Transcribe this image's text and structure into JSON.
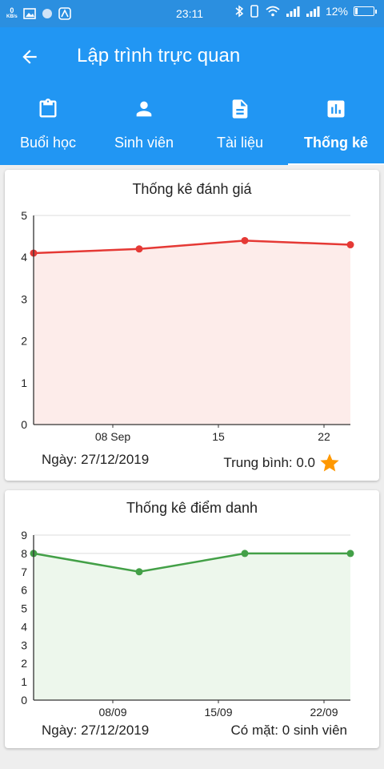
{
  "status_bar": {
    "net_speed": "0",
    "net_unit": "KB/s",
    "time": "23:11",
    "battery": "12%",
    "battery_level": 0.12
  },
  "app_bar": {
    "title": "Lập trình trực quan"
  },
  "tabs": [
    {
      "label": "Buổi học",
      "icon": "clipboard-icon"
    },
    {
      "label": "Sinh viên",
      "icon": "person-icon"
    },
    {
      "label": "Tài liệu",
      "icon": "document-icon"
    },
    {
      "label": "Thống kê",
      "icon": "chart-icon",
      "selected": true
    }
  ],
  "rating_card": {
    "title": "Thống kê đánh giá",
    "date": "Ngày: 27/12/2019",
    "average": "Trung bình: 0.0",
    "star_icon": "star-icon"
  },
  "attendance_card": {
    "title": "Thống kê điểm danh",
    "date": "Ngày: 27/12/2019",
    "present": "Có mặt: 0 sinh viên"
  },
  "chart_data": [
    {
      "type": "area",
      "title": "Thống kê đánh giá",
      "x_ticks": [
        "08 Sep",
        "15",
        "22"
      ],
      "x_tick_pos": [
        1.5,
        3.5,
        5.5
      ],
      "x": [
        0,
        2,
        4,
        6
      ],
      "xlim": [
        0,
        6
      ],
      "values": [
        4.1,
        4.2,
        4.4,
        4.3
      ],
      "ylim": [
        0,
        5
      ],
      "y_ticks": [
        0,
        1,
        2,
        3,
        4,
        5
      ],
      "color": "#e53935",
      "fill": "#fdecea",
      "grid": true
    },
    {
      "type": "area",
      "title": "Thống kê điểm danh",
      "x_ticks": [
        "08/09",
        "15/09",
        "22/09"
      ],
      "x_tick_pos": [
        1.5,
        3.5,
        5.5
      ],
      "x": [
        0,
        2,
        4,
        6
      ],
      "xlim": [
        0,
        6
      ],
      "values": [
        8,
        7,
        8,
        8
      ],
      "ylim": [
        0,
        9
      ],
      "y_ticks": [
        0,
        1,
        2,
        3,
        4,
        5,
        6,
        7,
        8,
        9
      ],
      "color": "#43a047",
      "fill": "#edf7ec",
      "grid": true
    }
  ]
}
